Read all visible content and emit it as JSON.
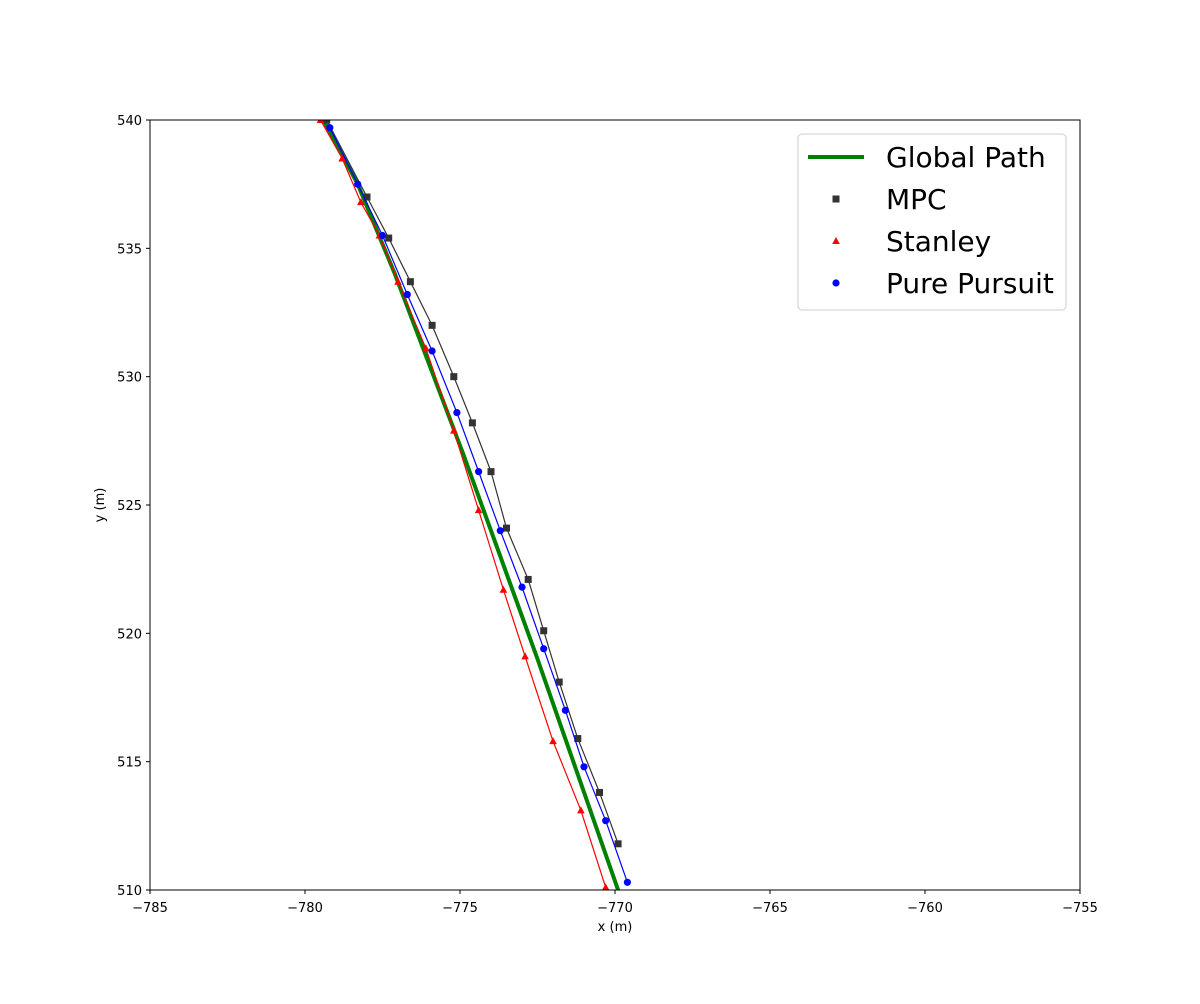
{
  "chart_data": {
    "type": "line",
    "title": "",
    "xlabel": "x (m)",
    "ylabel": "y (m)",
    "xlim": [
      -785,
      -755
    ],
    "ylim": [
      510,
      540
    ],
    "xticks": [
      -785,
      -780,
      -775,
      -770,
      -765,
      -760,
      -755
    ],
    "yticks": [
      510,
      515,
      520,
      525,
      530,
      535,
      540
    ],
    "xtick_labels": [
      "−785",
      "−780",
      "−775",
      "−770",
      "−765",
      "−760",
      "−755"
    ],
    "ytick_labels": [
      "510",
      "515",
      "520",
      "525",
      "530",
      "535",
      "540"
    ],
    "grid": false,
    "legend_position": "top-right",
    "series": [
      {
        "name": "Global Path",
        "color": "#008000",
        "marker": "none",
        "x": [
          -779.4,
          -778.3,
          -777.1,
          -776.0,
          -774.9,
          -773.7,
          -772.5,
          -771.2,
          -769.9
        ],
        "y": [
          540.0,
          537.5,
          534.0,
          530.5,
          527.0,
          523.0,
          519.0,
          514.5,
          510.0
        ]
      },
      {
        "name": "MPC",
        "color": "#333333",
        "marker": "square",
        "x": [
          -779.3,
          -778.0,
          -777.3,
          -776.6,
          -775.9,
          -775.2,
          -774.6,
          -774.0,
          -773.5,
          -772.8,
          -772.3,
          -771.8,
          -771.2,
          -770.5,
          -769.9
        ],
        "y": [
          540.0,
          537.0,
          535.4,
          533.7,
          532.0,
          530.0,
          528.2,
          526.3,
          524.1,
          522.1,
          520.1,
          518.1,
          515.9,
          513.8,
          511.8
        ]
      },
      {
        "name": "Stanley",
        "color": "#ff0000",
        "marker": "triangle",
        "x": [
          -779.5,
          -778.8,
          -778.2,
          -777.6,
          -777.0,
          -776.1,
          -775.2,
          -774.4,
          -773.6,
          -772.9,
          -772.0,
          -771.1,
          -770.3
        ],
        "y": [
          540.0,
          538.5,
          536.8,
          535.5,
          533.7,
          531.1,
          527.9,
          524.8,
          521.7,
          519.1,
          515.8,
          513.1,
          510.1
        ]
      },
      {
        "name": "Pure Pursuit",
        "color": "#0000ff",
        "marker": "circle",
        "x": [
          -779.2,
          -778.3,
          -777.5,
          -776.7,
          -775.9,
          -775.1,
          -774.4,
          -773.7,
          -773.0,
          -772.3,
          -771.6,
          -771.0,
          -770.3,
          -769.6
        ],
        "y": [
          539.7,
          537.5,
          535.5,
          533.2,
          531.0,
          528.6,
          526.3,
          524.0,
          521.8,
          519.4,
          517.0,
          514.8,
          512.7,
          510.3
        ]
      }
    ]
  }
}
